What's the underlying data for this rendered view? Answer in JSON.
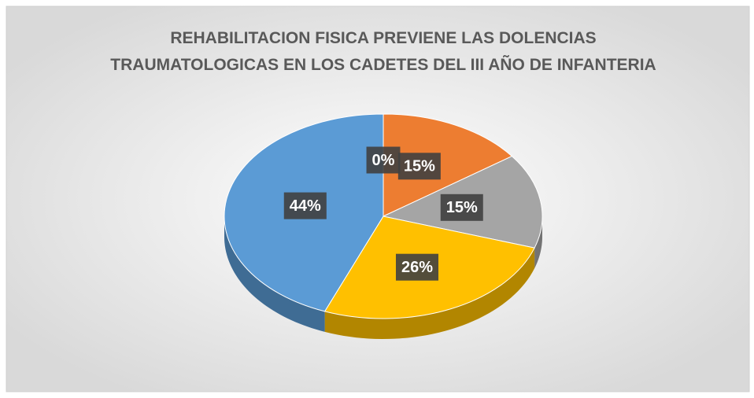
{
  "chart_data": {
    "type": "pie",
    "title": [
      "REHABILITACION FISICA PREVIENE LAS DOLENCIAS",
      "TRAUMATOLOGICAS EN LOS CADETES DEL III AÑO DE INFANTERIA"
    ],
    "values": [
      0,
      15,
      15,
      26,
      44
    ],
    "value_labels": [
      "0%",
      "15%",
      "15%",
      "26%",
      "44%"
    ],
    "colors": [
      "#264478",
      "#ed7d31",
      "#a5a5a5",
      "#ffc000",
      "#5b9bd5"
    ]
  }
}
